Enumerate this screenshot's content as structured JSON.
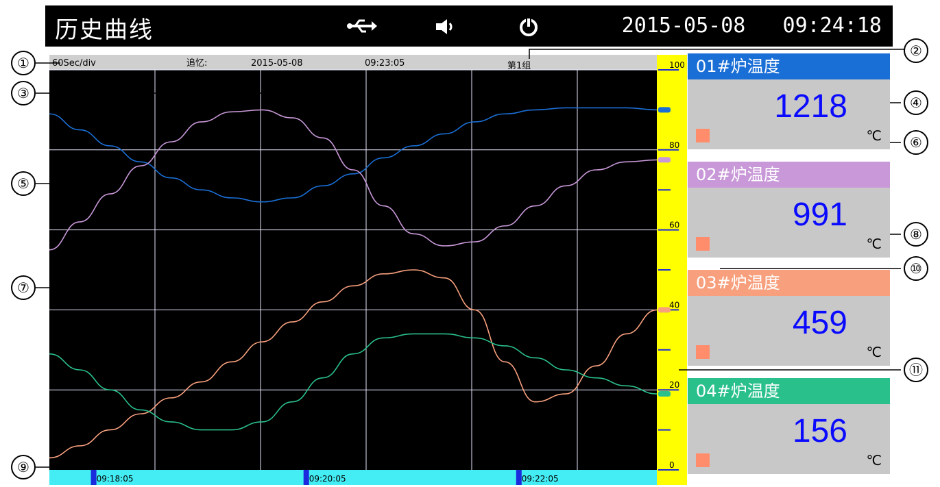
{
  "header": {
    "title": "历史曲线",
    "datetime": "2015-05-08   09:24:18",
    "icons": [
      "usb-icon",
      "speaker-icon",
      "power-icon"
    ]
  },
  "info_bar": {
    "time_per_div": "60Sec/div",
    "recall_label": "追忆:",
    "recall_date": "2015-05-08",
    "recall_time": "09:23:05",
    "group": "第1组"
  },
  "colors": {
    "ch1": "#1a6fd6",
    "ch2": "#c898d8",
    "ch3": "#f8a07e",
    "ch4": "#2ac08c",
    "scale_bg": "#ffff00",
    "time_bar_bg": "#44ecf4"
  },
  "channels": [
    {
      "name": "01#炉温度",
      "value": "1218",
      "unit": "℃",
      "color": "#1a6fd6"
    },
    {
      "name": "02#炉温度",
      "value": "991",
      "unit": "℃",
      "color": "#c898d8"
    },
    {
      "name": "03#炉温度",
      "value": "459",
      "unit": "℃",
      "color": "#f8a07e"
    },
    {
      "name": "04#炉温度",
      "value": "156",
      "unit": "℃",
      "color": "#2ac08c"
    }
  ],
  "callouts": [
    "①",
    "②",
    "③",
    "④",
    "⑤",
    "⑥",
    "⑦",
    "⑧",
    "⑨",
    "⑩",
    "⑪"
  ],
  "chart_data": {
    "type": "line",
    "ylim": [
      0,
      100
    ],
    "y_ticks": [
      "0",
      "20",
      "40",
      "60",
      "80",
      "100"
    ],
    "x_ticks": [
      "09:18:05",
      "09:20:05",
      "09:22:05"
    ],
    "grid": true,
    "series": [
      {
        "name": "01#炉温度",
        "x": [
          0,
          0.5,
          1,
          1.5,
          2,
          2.5,
          3,
          3.5,
          4,
          4.5,
          5,
          5.5,
          6,
          6.5,
          7,
          7.5,
          8,
          8.5,
          9,
          9.5,
          10
        ],
        "values": [
          89,
          85,
          81,
          77,
          73,
          70,
          68,
          67,
          68,
          71,
          74,
          78,
          81,
          84,
          87,
          89,
          90,
          90.5,
          90.5,
          90.5,
          90
        ]
      },
      {
        "name": "02#炉温度",
        "x": [
          0,
          0.5,
          1,
          1.5,
          2,
          2.5,
          3,
          3.5,
          4,
          4.5,
          5,
          5.5,
          6,
          6.5,
          7,
          7.5,
          8,
          8.5,
          9,
          9.5,
          10
        ],
        "values": [
          55,
          62,
          69,
          76,
          82,
          87,
          89.5,
          90,
          88,
          83,
          75,
          66,
          59,
          56,
          57,
          61,
          66,
          71,
          75,
          77,
          77.5
        ]
      },
      {
        "name": "03#炉温度",
        "x": [
          0,
          0.5,
          1,
          1.5,
          2,
          2.5,
          3,
          3.5,
          4,
          4.5,
          5,
          5.5,
          6,
          6.5,
          7,
          7.5,
          8,
          8.5,
          9,
          9.5,
          10
        ],
        "values": [
          3,
          6,
          10,
          14,
          18,
          22,
          27,
          32,
          37,
          42,
          46,
          49,
          50,
          48,
          40,
          27,
          17,
          19,
          26,
          34,
          40
        ]
      },
      {
        "name": "04#炉温度",
        "x": [
          0,
          0.5,
          1,
          1.5,
          2,
          2.5,
          3,
          3.5,
          4,
          4.5,
          5,
          5.5,
          6,
          6.5,
          7,
          7.5,
          8,
          8.5,
          9,
          9.5,
          10
        ],
        "values": [
          29,
          25,
          20,
          15,
          12,
          10,
          10,
          12,
          17,
          23,
          29,
          33,
          34,
          34,
          33,
          31,
          28,
          25,
          23,
          21,
          19
        ]
      }
    ]
  }
}
